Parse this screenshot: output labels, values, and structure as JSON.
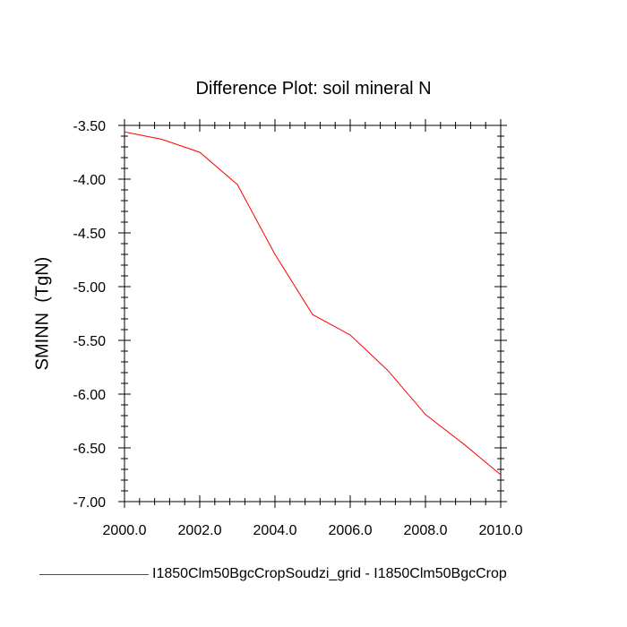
{
  "chart_data": {
    "type": "line",
    "title": "Difference Plot: soil mineral N",
    "xlabel": "",
    "ylabel": "SMINN  (TgN)",
    "xlim": [
      2000,
      2010
    ],
    "ylim": [
      -7.0,
      -3.5
    ],
    "x_ticks": [
      "2000.0",
      "2002.0",
      "2004.0",
      "2006.0",
      "2008.0",
      "2010.0"
    ],
    "y_ticks": [
      "-3.50",
      "-4.00",
      "-4.50",
      "-5.00",
      "-5.50",
      "-6.00",
      "-6.50",
      "-7.00"
    ],
    "grid": false,
    "legend_position": "bottom",
    "series": [
      {
        "name": "I1850Clm50BgcCropSoudzi_grid - I1850Clm50BgcCrop",
        "color": "#ff0000",
        "x": [
          2000,
          2001,
          2002,
          2003,
          2004,
          2005,
          2006,
          2007,
          2008,
          2009,
          2010
        ],
        "y": [
          -3.56,
          -3.63,
          -3.75,
          -4.05,
          -4.7,
          -5.26,
          -5.45,
          -5.78,
          -6.19,
          -6.46,
          -6.75
        ]
      }
    ]
  }
}
